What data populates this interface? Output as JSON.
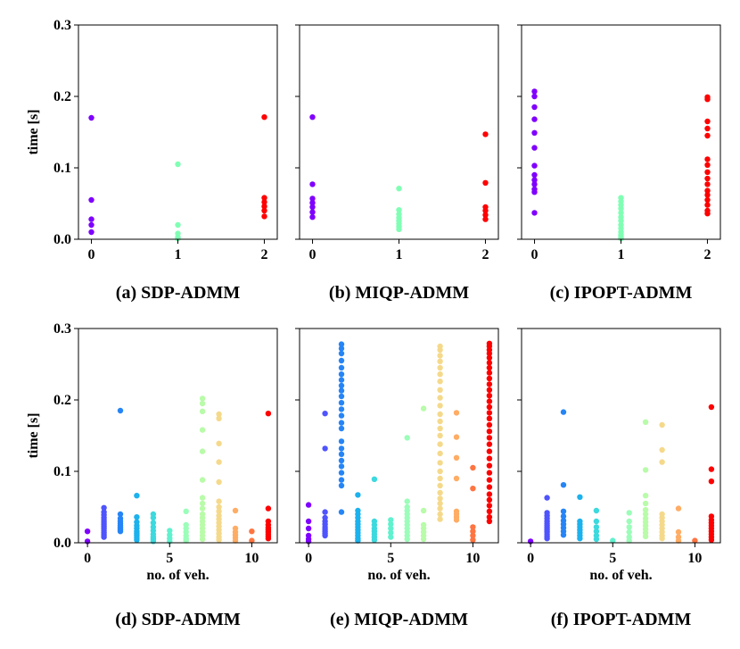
{
  "chart_data": [
    {
      "type": "scatter",
      "title": "(a)  SDP-ADMM",
      "xlabel": "",
      "ylabel": "time [s]",
      "xlim": [
        -0.15,
        2.15
      ],
      "ylim": [
        0,
        0.3
      ],
      "xticks": [
        "0",
        "1",
        "2"
      ],
      "yticks": [
        "0.0",
        "0.1",
        "0.2",
        "0.3"
      ],
      "palette": [
        "#7f00ff",
        "#80ffb4",
        "#ff0000"
      ],
      "series": [
        {
          "x": 0,
          "values": [
            0.17,
            0.055,
            0.028,
            0.02,
            0.01
          ]
        },
        {
          "x": 1,
          "values": [
            0.105,
            0.02,
            0.008,
            0.003,
            0.001
          ]
        },
        {
          "x": 2,
          "values": [
            0.171,
            0.058,
            0.052,
            0.046,
            0.04,
            0.032
          ]
        }
      ]
    },
    {
      "type": "scatter",
      "title": "(b)  MIQP-ADMM",
      "xlabel": "",
      "ylabel": "",
      "xlim": [
        -0.15,
        2.15
      ],
      "ylim": [
        0,
        0.3
      ],
      "xticks": [
        "0",
        "1",
        "2"
      ],
      "yticks": [],
      "palette": [
        "#7f00ff",
        "#80ffb4",
        "#ff0000"
      ],
      "series": [
        {
          "x": 0,
          "values": [
            0.171,
            0.077,
            0.057,
            0.051,
            0.045,
            0.038,
            0.031
          ]
        },
        {
          "x": 1,
          "values": [
            0.071,
            0.041,
            0.035,
            0.03,
            0.026,
            0.022,
            0.018,
            0.014
          ]
        },
        {
          "x": 2,
          "values": [
            0.147,
            0.079,
            0.045,
            0.04,
            0.034,
            0.028
          ]
        }
      ]
    },
    {
      "type": "scatter",
      "title": "(c) IPOPT-ADMM",
      "xlabel": "",
      "ylabel": "",
      "xlim": [
        -0.15,
        2.15
      ],
      "ylim": [
        0,
        0.3
      ],
      "xticks": [
        "0",
        "1",
        "2"
      ],
      "yticks": [],
      "palette": [
        "#7f00ff",
        "#80ffb4",
        "#ff0000"
      ],
      "series": [
        {
          "x": 0,
          "values": [
            0.207,
            0.2,
            0.185,
            0.168,
            0.149,
            0.128,
            0.103,
            0.09,
            0.083,
            0.077,
            0.07,
            0.066,
            0.037
          ]
        },
        {
          "x": 1,
          "values": [
            0.058,
            0.053,
            0.048,
            0.043,
            0.037,
            0.031,
            0.026,
            0.02,
            0.015,
            0.01,
            0.006,
            0.003,
            0.001
          ]
        },
        {
          "x": 2,
          "values": [
            0.199,
            0.196,
            0.165,
            0.155,
            0.145,
            0.112,
            0.104,
            0.094,
            0.085,
            0.077,
            0.068,
            0.062,
            0.055,
            0.048,
            0.04,
            0.036
          ]
        }
      ]
    },
    {
      "type": "scatter",
      "title": "(d) SDP-ADMM",
      "xlabel": "no. of veh.",
      "ylabel": "time [s]",
      "xlim": [
        -0.55,
        11.55
      ],
      "ylim": [
        0,
        0.3
      ],
      "xticks": [
        "0",
        "5",
        "10"
      ],
      "xtick_values": [
        0,
        5,
        10
      ],
      "yticks": [
        "0.0",
        "0.1",
        "0.2",
        "0.3"
      ],
      "palette": [
        "#7f00ff",
        "#5d3dfd",
        "#3c6ff9",
        "#1a97f3",
        "#09b7ec",
        "#29d1e3",
        "#4ae5d9",
        "#6cf6cd",
        "#8dfdc0",
        "#aefdb1",
        "#d2f59f",
        "#f0e68c",
        "#ffd478",
        "#ffb561",
        "#ff8d49",
        "#ff5f31",
        "#ff2c17",
        "#ff0000"
      ],
      "series": [
        {
          "x": 0,
          "color": "#7f00ff",
          "values": [
            0.016,
            0.002
          ]
        },
        {
          "x": 1,
          "color": "#4f54fc",
          "values": [
            0.049,
            0.043,
            0.039,
            0.035,
            0.032,
            0.029,
            0.026,
            0.023,
            0.02,
            0.017,
            0.014,
            0.011,
            0.008
          ]
        },
        {
          "x": 2,
          "color": "#2685f6",
          "values": [
            0.185,
            0.04,
            0.034,
            0.03,
            0.027,
            0.024,
            0.022,
            0.02,
            0.018,
            0.016
          ]
        },
        {
          "x": 3,
          "color": "#1bb2ed",
          "values": [
            0.066,
            0.036,
            0.029,
            0.024,
            0.02,
            0.016,
            0.013,
            0.01,
            0.007,
            0.004
          ]
        },
        {
          "x": 4,
          "color": "#3cd9de",
          "values": [
            0.04,
            0.035,
            0.028,
            0.022,
            0.017,
            0.012,
            0.008,
            0.005,
            0.002
          ]
        },
        {
          "x": 5,
          "color": "#60f1ce",
          "values": [
            0.017,
            0.011,
            0.006,
            0.002
          ]
        },
        {
          "x": 6,
          "color": "#9bfdb9",
          "values": [
            0.044,
            0.025,
            0.02,
            0.015,
            0.01,
            0.006,
            0.003
          ]
        },
        {
          "x": 7,
          "color": "#b8fba8",
          "values": [
            0.202,
            0.195,
            0.184,
            0.158,
            0.128,
            0.088,
            0.063,
            0.055,
            0.048,
            0.04,
            0.035,
            0.03,
            0.025,
            0.02,
            0.015,
            0.01,
            0.005
          ]
        },
        {
          "x": 8,
          "color": "#f5d98b",
          "values": [
            0.18,
            0.174,
            0.139,
            0.113,
            0.085,
            0.058,
            0.05,
            0.044,
            0.038,
            0.033,
            0.028,
            0.023,
            0.018,
            0.013,
            0.008,
            0.004
          ]
        },
        {
          "x": 9,
          "color": "#ffac64",
          "values": [
            0.045,
            0.02,
            0.015,
            0.011,
            0.007,
            0.003
          ]
        },
        {
          "x": 10,
          "color": "#ff7440",
          "values": [
            0.016,
            0.003
          ]
        },
        {
          "x": 11,
          "color": "#ff0000",
          "values": [
            0.181,
            0.048,
            0.03,
            0.025,
            0.021,
            0.018,
            0.015,
            0.012,
            0.009,
            0.006
          ]
        }
      ]
    },
    {
      "type": "scatter",
      "title": "(e) MIQP-ADMM",
      "xlabel": "no. of veh.",
      "ylabel": "",
      "xlim": [
        -0.55,
        11.55
      ],
      "ylim": [
        0,
        0.3
      ],
      "xticks": [
        "0",
        "5",
        "10"
      ],
      "xtick_values": [
        0,
        5,
        10
      ],
      "yticks": [],
      "palette": [
        "#7f00ff",
        "#4f54fc",
        "#2685f6",
        "#1bb2ed",
        "#3cd9de",
        "#60f1ce",
        "#9bfdb9",
        "#b8fba8",
        "#f5d98b",
        "#ffac64",
        "#ff7440",
        "#ff0000"
      ],
      "series": [
        {
          "x": 0,
          "color": "#7f00ff",
          "values": [
            0.053,
            0.03,
            0.02,
            0.01,
            0.005,
            0.002
          ]
        },
        {
          "x": 1,
          "color": "#4f54fc",
          "values": [
            0.181,
            0.132,
            0.043,
            0.035,
            0.03,
            0.026,
            0.022,
            0.019,
            0.016,
            0.013,
            0.01
          ]
        },
        {
          "x": 2,
          "color": "#2685f6",
          "values": [
            0.278,
            0.272,
            0.265,
            0.255,
            0.245,
            0.236,
            0.228,
            0.22,
            0.213,
            0.205,
            0.196,
            0.187,
            0.178,
            0.168,
            0.16,
            0.142,
            0.132,
            0.124,
            0.115,
            0.107,
            0.098,
            0.088,
            0.08,
            0.043
          ]
        },
        {
          "x": 3,
          "color": "#1bb2ed",
          "values": [
            0.067,
            0.045,
            0.04,
            0.035,
            0.03,
            0.026,
            0.022,
            0.018,
            0.014,
            0.01,
            0.006,
            0.003
          ]
        },
        {
          "x": 4,
          "color": "#3cd9de",
          "values": [
            0.089,
            0.03,
            0.025,
            0.02,
            0.016,
            0.012,
            0.008,
            0.004
          ]
        },
        {
          "x": 5,
          "color": "#60f1ce",
          "values": [
            0.032,
            0.026,
            0.02,
            0.014,
            0.008
          ]
        },
        {
          "x": 6,
          "color": "#9bfdb9",
          "values": [
            0.147,
            0.058,
            0.05,
            0.045,
            0.04,
            0.035,
            0.03,
            0.025,
            0.02,
            0.015,
            0.01,
            0.005
          ]
        },
        {
          "x": 7,
          "color": "#b8fba8",
          "values": [
            0.188,
            0.045,
            0.025,
            0.02,
            0.015,
            0.01,
            0.005
          ]
        },
        {
          "x": 8,
          "color": "#f5d98b",
          "values": [
            0.275,
            0.27,
            0.262,
            0.254,
            0.245,
            0.236,
            0.226,
            0.214,
            0.203,
            0.192,
            0.18,
            0.17,
            0.16,
            0.15,
            0.138,
            0.125,
            0.112,
            0.1,
            0.09,
            0.08,
            0.07,
            0.062,
            0.055,
            0.048,
            0.04,
            0.033
          ]
        },
        {
          "x": 9,
          "color": "#ffac64",
          "values": [
            0.182,
            0.148,
            0.119,
            0.09,
            0.044,
            0.04,
            0.036,
            0.032
          ]
        },
        {
          "x": 10,
          "color": "#ff7440",
          "values": [
            0.105,
            0.076,
            0.022,
            0.016,
            0.01,
            0.004
          ]
        },
        {
          "x": 11,
          "color": "#ff0000",
          "values": [
            0.279,
            0.275,
            0.27,
            0.265,
            0.259,
            0.252,
            0.245,
            0.238,
            0.23,
            0.222,
            0.214,
            0.206,
            0.198,
            0.19,
            0.182,
            0.174,
            0.165,
            0.156,
            0.147,
            0.138,
            0.128,
            0.118,
            0.108,
            0.098,
            0.088,
            0.078,
            0.068,
            0.06,
            0.052,
            0.044,
            0.036,
            0.03
          ]
        }
      ]
    },
    {
      "type": "scatter",
      "title": "(f) IPOPT-ADMM",
      "xlabel": "no. of veh.",
      "ylabel": "",
      "xlim": [
        -0.55,
        11.55
      ],
      "ylim": [
        0,
        0.3
      ],
      "xticks": [
        "0",
        "5",
        "10"
      ],
      "xtick_values": [
        0,
        5,
        10
      ],
      "yticks": [],
      "palette": [
        "#7f00ff",
        "#4f54fc",
        "#2685f6",
        "#1bb2ed",
        "#3cd9de",
        "#60f1ce",
        "#9bfdb9",
        "#b8fba8",
        "#f5d98b",
        "#ffac64",
        "#ff7440",
        "#ff0000"
      ],
      "series": [
        {
          "x": 0,
          "color": "#7f00ff",
          "values": [
            0.002
          ]
        },
        {
          "x": 1,
          "color": "#4f54fc",
          "values": [
            0.063,
            0.042,
            0.038,
            0.034,
            0.03,
            0.027,
            0.024,
            0.021,
            0.018,
            0.015,
            0.012,
            0.009,
            0.006
          ]
        },
        {
          "x": 2,
          "color": "#2685f6",
          "values": [
            0.183,
            0.081,
            0.044,
            0.037,
            0.031,
            0.026,
            0.021,
            0.016,
            0.011
          ]
        },
        {
          "x": 3,
          "color": "#1bb2ed",
          "values": [
            0.064,
            0.03,
            0.026,
            0.022,
            0.018,
            0.014,
            0.01,
            0.006
          ]
        },
        {
          "x": 4,
          "color": "#3cd9de",
          "values": [
            0.045,
            0.03,
            0.022,
            0.016,
            0.01,
            0.005
          ]
        },
        {
          "x": 5,
          "color": "#60f1ce",
          "values": [
            0.003
          ]
        },
        {
          "x": 6,
          "color": "#9bfdb9",
          "values": [
            0.042,
            0.03,
            0.022,
            0.015,
            0.008,
            0.003
          ]
        },
        {
          "x": 7,
          "color": "#b8fba8",
          "values": [
            0.169,
            0.102,
            0.066,
            0.055,
            0.046,
            0.04,
            0.034,
            0.029,
            0.024,
            0.019,
            0.014,
            0.009
          ]
        },
        {
          "x": 8,
          "color": "#f5d98b",
          "values": [
            0.165,
            0.13,
            0.113,
            0.04,
            0.035,
            0.03,
            0.025,
            0.02,
            0.015,
            0.01,
            0.006
          ]
        },
        {
          "x": 9,
          "color": "#ffac64",
          "values": [
            0.048,
            0.015,
            0.008,
            0.003
          ]
        },
        {
          "x": 10,
          "color": "#ff7440",
          "values": [
            0.003
          ]
        },
        {
          "x": 11,
          "color": "#ff0000",
          "values": [
            0.19,
            0.103,
            0.086,
            0.037,
            0.032,
            0.028,
            0.024,
            0.02,
            0.016,
            0.012,
            0.008,
            0.004
          ]
        }
      ]
    }
  ]
}
